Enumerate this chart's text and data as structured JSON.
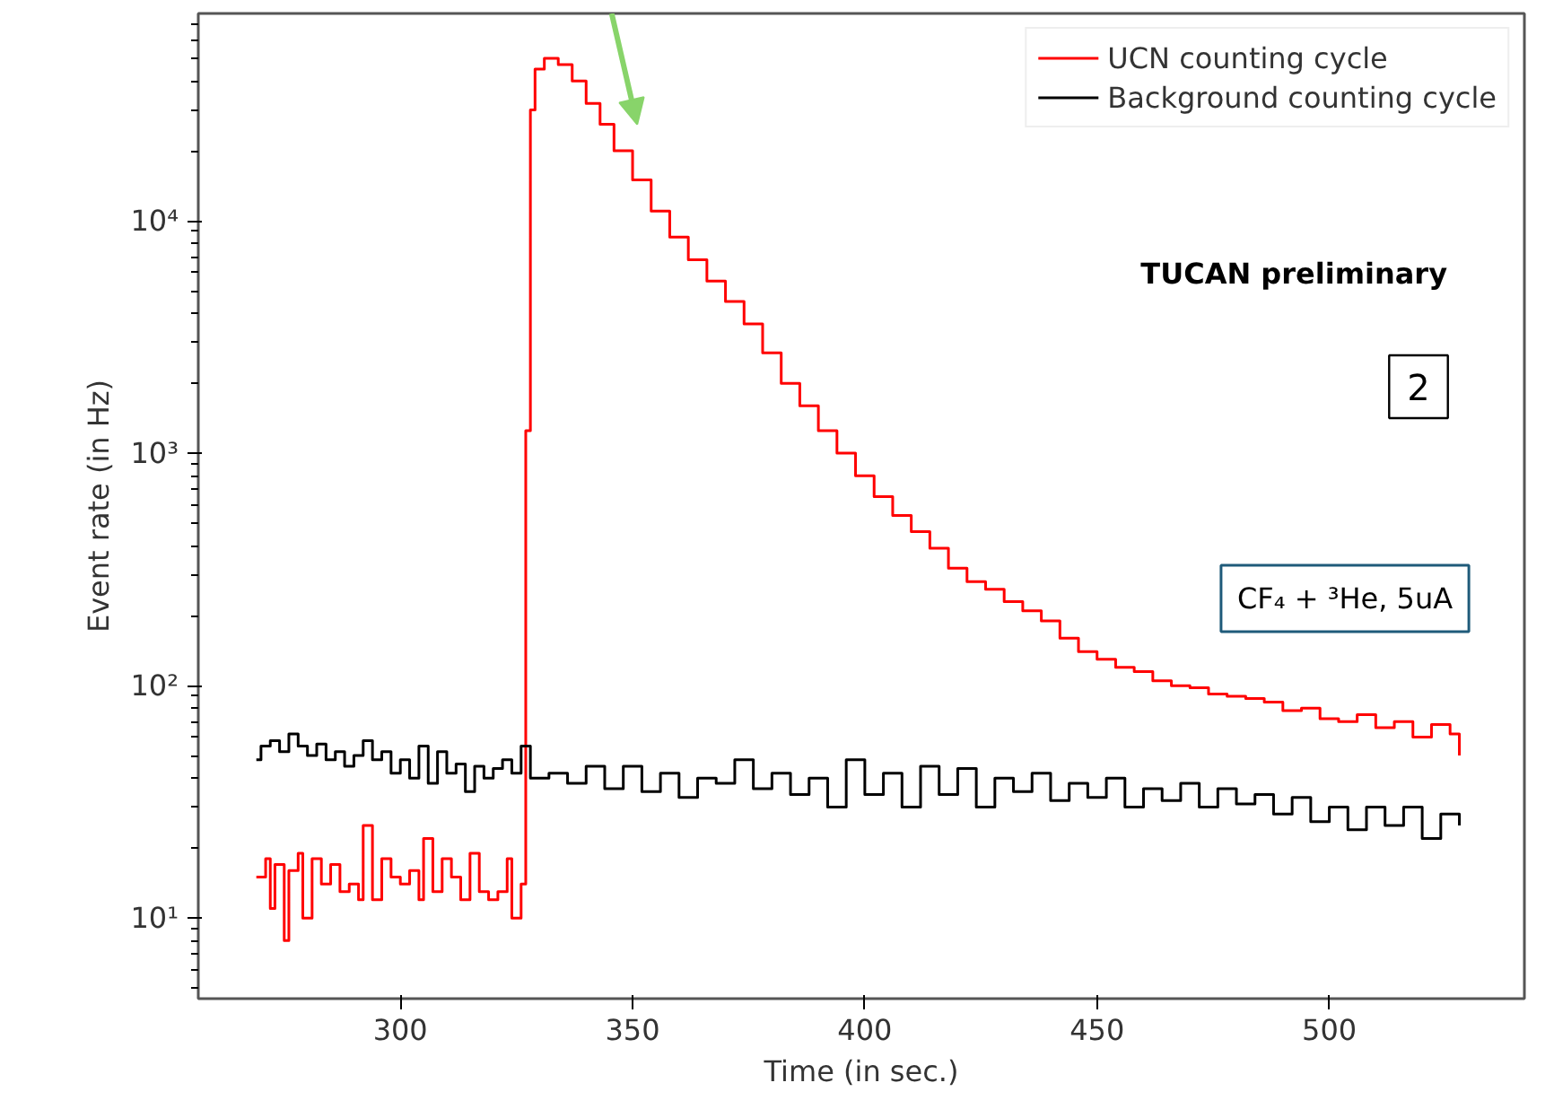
{
  "chart_data": {
    "type": "step",
    "xlabel": "Time (in sec.)",
    "ylabel": "Event rate (in Hz)",
    "annotations": [
      "TUCAN preliminary",
      "2",
      "CF₄ + ³He, 5uA"
    ],
    "log": "y",
    "grid": false,
    "legend": "top right",
    "xlim": [
      256.5,
      542
    ],
    "xticks": [
      300,
      350,
      400,
      450,
      500
    ],
    "ylim": [
      4.5,
      78000
    ],
    "yticks": [
      {
        "value": 10,
        "label": "10¹"
      },
      {
        "value": 100,
        "label": "10²"
      },
      {
        "value": 1000,
        "label": "10³"
      },
      {
        "value": 10000,
        "label": "10⁴"
      }
    ],
    "series": [
      {
        "name": "UCN counting cycle",
        "color": "#ff0000",
        "x": [
          269,
          271,
          272,
          273,
          275,
          276,
          278,
          279,
          281,
          283,
          285,
          287,
          289,
          291,
          292,
          294,
          296,
          298,
          300,
          302,
          304,
          305,
          307,
          309,
          311,
          313,
          315,
          317,
          319,
          321,
          323,
          324,
          326,
          327,
          328,
          329,
          331,
          334,
          337,
          340,
          343,
          346,
          350,
          354,
          358,
          362,
          366,
          370,
          374,
          378,
          382,
          386,
          390,
          394,
          398,
          402,
          406,
          410,
          414,
          418,
          422,
          426,
          430,
          434,
          438,
          442,
          446,
          450,
          454,
          458,
          462,
          466,
          470,
          474,
          478,
          482,
          486,
          490,
          494,
          498,
          502,
          506,
          510,
          514,
          518,
          522,
          526,
          528
        ],
        "values": [
          15,
          18,
          11,
          17,
          8,
          16,
          19,
          10,
          18,
          14,
          17,
          13,
          14,
          12,
          25,
          12,
          18,
          15,
          14,
          16,
          12,
          22,
          13,
          18,
          15,
          12,
          19,
          13,
          12,
          13,
          18,
          10,
          14,
          1250,
          30000,
          45000,
          50000,
          47000,
          40000,
          32000,
          26000,
          20000,
          15000,
          11000,
          8500,
          6800,
          5500,
          4500,
          3600,
          2700,
          2000,
          1600,
          1250,
          1000,
          800,
          650,
          540,
          460,
          390,
          320,
          280,
          260,
          230,
          210,
          190,
          160,
          140,
          130,
          120,
          115,
          105,
          100,
          98,
          92,
          90,
          88,
          85,
          78,
          80,
          72,
          70,
          75,
          66,
          70,
          60,
          68,
          62,
          50
        ]
      },
      {
        "name": "Background counting cycle",
        "color": "#000000",
        "x": [
          269,
          270,
          272,
          274,
          276,
          278,
          280,
          282,
          284,
          286,
          288,
          290,
          292,
          294,
          296,
          298,
          300,
          302,
          304,
          306,
          308,
          310,
          312,
          314,
          316,
          318,
          320,
          322,
          324,
          326,
          328,
          332,
          336,
          340,
          344,
          348,
          352,
          356,
          360,
          364,
          368,
          372,
          376,
          380,
          384,
          388,
          392,
          396,
          400,
          404,
          408,
          412,
          416,
          420,
          424,
          428,
          432,
          436,
          440,
          444,
          448,
          452,
          456,
          460,
          464,
          468,
          472,
          476,
          480,
          484,
          488,
          492,
          496,
          500,
          504,
          508,
          512,
          516,
          520,
          524,
          528
        ],
        "values": [
          48,
          55,
          58,
          52,
          62,
          55,
          50,
          56,
          48,
          52,
          45,
          50,
          58,
          48,
          52,
          42,
          48,
          40,
          55,
          38,
          52,
          42,
          46,
          35,
          45,
          40,
          44,
          48,
          42,
          55,
          40,
          42,
          38,
          45,
          36,
          45,
          35,
          42,
          33,
          40,
          38,
          48,
          36,
          42,
          34,
          40,
          30,
          48,
          34,
          42,
          30,
          45,
          34,
          44,
          30,
          40,
          35,
          42,
          32,
          38,
          33,
          40,
          30,
          36,
          32,
          38,
          30,
          36,
          31,
          34,
          28,
          33,
          26,
          30,
          24,
          30,
          25,
          30,
          22,
          28,
          25
        ]
      }
    ]
  }
}
